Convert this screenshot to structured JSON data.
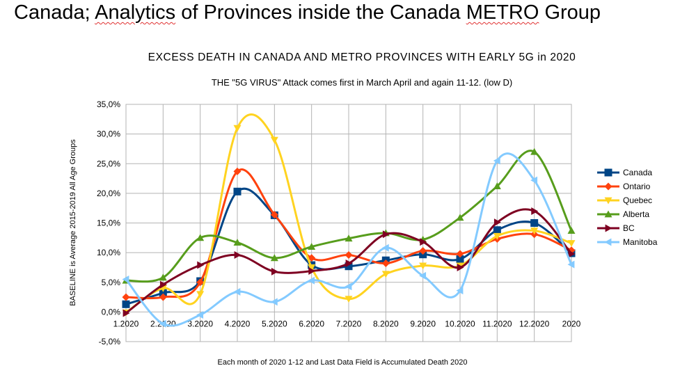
{
  "slide": {
    "title_plain": "Canada; ",
    "title_spell1": "Analytics",
    "title_mid": " of Provinces inside the Canada ",
    "title_spell2": "METRO",
    "title_end": " Group"
  },
  "chart_data": {
    "type": "line",
    "title": "EXCESS DEATH IN CANADA AND METRO PROVINCES WITH EARLY 5G in 2020",
    "subtitle": "THE \"5G VIRUS\" Attack comes first in March April and again 11-12. (low D)",
    "xlabel": "Each month of 2020 1-12 and Last Data Field is Accumulated Death 2020",
    "ylabel": "BASELINE is Average 2015-2019 All Age Groups",
    "categories": [
      "1.2020",
      "2.2020",
      "3.2020",
      "4.2020",
      "5.2020",
      "6.2020",
      "7.2020",
      "8.2020",
      "9.2020",
      "10.2020",
      "11.2020",
      "12.2020",
      "2020"
    ],
    "ylim": [
      -5,
      35
    ],
    "yticks": [
      {
        "value": -5,
        "label": "-5,0%"
      },
      {
        "value": 0,
        "label": "0,0%"
      },
      {
        "value": 5,
        "label": "5,0%"
      },
      {
        "value": 10,
        "label": "10,0%"
      },
      {
        "value": 15,
        "label": "15,0%"
      },
      {
        "value": 20,
        "label": "20,0%"
      },
      {
        "value": 25,
        "label": "25,0%"
      },
      {
        "value": 30,
        "label": "30,0%"
      },
      {
        "value": 35,
        "label": "35,0%"
      }
    ],
    "grid": true,
    "legend_position": "right",
    "series": [
      {
        "name": "Canada",
        "color": "#004586",
        "marker": "square",
        "values": [
          1.3,
          3.2,
          5.2,
          20.3,
          16.3,
          7.9,
          7.7,
          8.7,
          9.7,
          8.9,
          13.8,
          15.0,
          9.9
        ]
      },
      {
        "name": "Ontario",
        "color": "#ff420e",
        "marker": "diamond",
        "values": [
          2.5,
          2.5,
          5.0,
          23.7,
          16.4,
          9.1,
          9.6,
          8.2,
          10.3,
          9.8,
          12.3,
          13.1,
          10.4
        ]
      },
      {
        "name": "Quebec",
        "color": "#ffd320",
        "marker": "down-triangle",
        "values": [
          -0.1,
          4.0,
          3.0,
          31.0,
          29.0,
          7.5,
          2.2,
          6.4,
          7.8,
          7.8,
          12.8,
          13.7,
          11.6
        ]
      },
      {
        "name": "Alberta",
        "color": "#579d1c",
        "marker": "up-triangle",
        "values": [
          5.3,
          5.8,
          12.5,
          11.7,
          9.1,
          11.0,
          12.4,
          13.3,
          12.2,
          15.9,
          21.2,
          27.0,
          13.7
        ]
      },
      {
        "name": "BC",
        "color": "#7e0021",
        "marker": "right-triangle",
        "values": [
          -0.2,
          4.6,
          7.9,
          9.6,
          6.8,
          6.9,
          8.2,
          13.1,
          11.8,
          7.5,
          15.1,
          17.0,
          9.8
        ]
      },
      {
        "name": "Manitoba",
        "color": "#83caff",
        "marker": "left-triangle",
        "values": [
          5.5,
          -2.0,
          -0.5,
          3.4,
          1.7,
          5.3,
          4.3,
          10.8,
          6.1,
          3.6,
          25.5,
          22.2,
          8.0
        ]
      }
    ]
  }
}
